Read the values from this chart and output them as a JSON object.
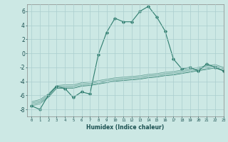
{
  "x": [
    0,
    1,
    2,
    3,
    4,
    5,
    6,
    7,
    8,
    9,
    10,
    11,
    12,
    13,
    14,
    15,
    16,
    17,
    18,
    19,
    20,
    21,
    22,
    23
  ],
  "y_main": [
    -7.5,
    -8.0,
    -6.0,
    -4.7,
    -5.0,
    -6.3,
    -5.5,
    -5.8,
    -0.2,
    3.0,
    5.0,
    4.5,
    4.5,
    6.0,
    6.7,
    5.2,
    3.2,
    -0.8,
    -2.2,
    -2.0,
    -2.5,
    -1.5,
    -2.0,
    -2.5
  ],
  "y_trend1": [
    -7.5,
    -7.2,
    -6.3,
    -5.0,
    -5.0,
    -5.0,
    -4.7,
    -4.6,
    -4.4,
    -4.2,
    -4.0,
    -3.9,
    -3.8,
    -3.7,
    -3.5,
    -3.4,
    -3.2,
    -3.1,
    -2.9,
    -2.7,
    -2.5,
    -2.3,
    -2.1,
    -2.5
  ],
  "y_trend2": [
    -7.3,
    -7.0,
    -6.2,
    -5.0,
    -4.9,
    -4.9,
    -4.6,
    -4.5,
    -4.3,
    -4.1,
    -3.9,
    -3.8,
    -3.7,
    -3.6,
    -3.4,
    -3.3,
    -3.1,
    -3.0,
    -2.8,
    -2.6,
    -2.4,
    -2.2,
    -2.0,
    -2.4
  ],
  "y_trend3": [
    -7.1,
    -6.8,
    -6.0,
    -4.8,
    -4.7,
    -4.7,
    -4.4,
    -4.3,
    -4.1,
    -3.9,
    -3.7,
    -3.6,
    -3.5,
    -3.4,
    -3.2,
    -3.1,
    -2.9,
    -2.8,
    -2.6,
    -2.4,
    -2.2,
    -2.0,
    -1.8,
    -2.2
  ],
  "y_trend4": [
    -6.9,
    -6.6,
    -5.8,
    -4.6,
    -4.5,
    -4.5,
    -4.2,
    -4.1,
    -3.9,
    -3.7,
    -3.5,
    -3.4,
    -3.3,
    -3.2,
    -3.0,
    -2.9,
    -2.7,
    -2.6,
    -2.4,
    -2.2,
    -2.0,
    -1.8,
    -1.6,
    -2.0
  ],
  "line_color": "#2e7d6e",
  "bg_color": "#cce8e4",
  "grid_color": "#aacece",
  "xlabel": "Humidex (Indice chaleur)",
  "ylim": [
    -9,
    7
  ],
  "xlim": [
    -0.5,
    23
  ],
  "yticks": [
    -8,
    -6,
    -4,
    -2,
    0,
    2,
    4,
    6
  ],
  "xticks": [
    0,
    1,
    2,
    3,
    4,
    5,
    6,
    7,
    8,
    9,
    10,
    11,
    12,
    13,
    14,
    15,
    16,
    17,
    18,
    19,
    20,
    21,
    22,
    23
  ]
}
